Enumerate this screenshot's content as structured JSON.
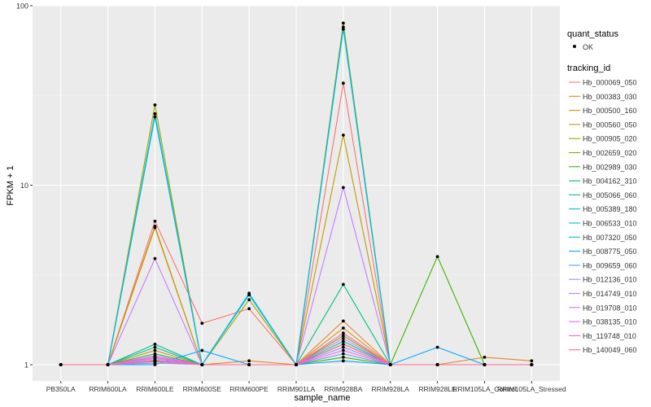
{
  "chart_data": {
    "type": "line",
    "title": "",
    "xlabel": "sample_name",
    "ylabel": "FPKM + 1",
    "y_scale": "log10",
    "ylim": [
      1,
      100
    ],
    "y_ticks": [
      1,
      10,
      100
    ],
    "y_tick_labels": [
      "1",
      "10",
      "100"
    ],
    "categories": [
      "PB350LA",
      "RRIM600LA",
      "RRIM600LE",
      "RRIM600SE",
      "RRIM600PE",
      "RRIM901LA",
      "RRIM928BA",
      "RRIM928LA",
      "RRIM928LE",
      "RRIM105LA_Control",
      "RRIM105LA_Stressed"
    ],
    "legend_shape": {
      "title": "quant_status",
      "entries": [
        "OK"
      ]
    },
    "legend_color": {
      "title": "tracking_id"
    },
    "series": [
      {
        "name": "Hb_000069_050",
        "color": "#F8766D",
        "values": [
          1,
          1,
          6.3,
          1.7,
          2.05,
          1,
          37,
          1,
          1,
          1,
          1
        ]
      },
      {
        "name": "Hb_000383_030",
        "color": "#EA8331",
        "values": [
          1,
          1,
          5.9,
          1,
          1.05,
          1,
          1.75,
          1,
          1,
          1.1,
          1.05
        ]
      },
      {
        "name": "Hb_000500_160",
        "color": "#D89000",
        "values": [
          1,
          1,
          1.2,
          1,
          1,
          1,
          1.6,
          1,
          1,
          1,
          1
        ]
      },
      {
        "name": "Hb_000560_050",
        "color": "#C09B00",
        "values": [
          1,
          1,
          5.8,
          1,
          1,
          1,
          19,
          1,
          1,
          1,
          1
        ]
      },
      {
        "name": "Hb_000905_020",
        "color": "#A3A500",
        "values": [
          1,
          1,
          28,
          1,
          2.3,
          1,
          80,
          1,
          1,
          1,
          1
        ]
      },
      {
        "name": "Hb_002659_020",
        "color": "#7CAE00",
        "values": [
          1,
          1,
          1.1,
          1,
          1,
          1,
          1.45,
          1,
          1,
          1,
          1
        ]
      },
      {
        "name": "Hb_002989_030",
        "color": "#39B600",
        "values": [
          1,
          1,
          1.05,
          1,
          1,
          1,
          1.1,
          1,
          4,
          1,
          1
        ]
      },
      {
        "name": "Hb_004162_310",
        "color": "#00BB4E",
        "values": [
          1,
          1,
          1.15,
          1,
          1,
          1,
          1.3,
          1,
          1,
          1,
          1
        ]
      },
      {
        "name": "Hb_005066_060",
        "color": "#00BF7D",
        "values": [
          1,
          1,
          1.3,
          1,
          1,
          1,
          2.8,
          1,
          1,
          1,
          1
        ]
      },
      {
        "name": "Hb_005389_180",
        "color": "#00C1A3",
        "values": [
          1,
          1,
          1.25,
          1,
          1,
          1,
          1.35,
          1,
          1,
          1,
          1
        ]
      },
      {
        "name": "Hb_006533_010",
        "color": "#00BFC4",
        "values": [
          1,
          1,
          25,
          1,
          2.45,
          1,
          76,
          1,
          1,
          1,
          1
        ]
      },
      {
        "name": "Hb_007320_050",
        "color": "#00B8E7",
        "values": [
          1,
          1,
          24,
          1,
          2.5,
          1,
          74,
          1,
          1,
          1,
          1
        ]
      },
      {
        "name": "Hb_008775_050",
        "color": "#00A9FF",
        "values": [
          1,
          1,
          1,
          1.2,
          1,
          1,
          1.05,
          1,
          1.25,
          1,
          1
        ]
      },
      {
        "name": "Hb_009659_060",
        "color": "#619CFF",
        "values": [
          1,
          1,
          1.02,
          1,
          1,
          1,
          1.15,
          1,
          1,
          1,
          1
        ]
      },
      {
        "name": "Hb_012136_010",
        "color": "#9F8CFF",
        "values": [
          1,
          1,
          1.08,
          1,
          1,
          1,
          1.25,
          1,
          1,
          1,
          1
        ]
      },
      {
        "name": "Hb_014749_010",
        "color": "#C77CFF",
        "values": [
          1,
          1,
          3.9,
          1,
          1,
          1,
          9.7,
          1,
          1,
          1,
          1
        ]
      },
      {
        "name": "Hb_019708_010",
        "color": "#E76BF3",
        "values": [
          1,
          1,
          1.12,
          1,
          1,
          1,
          1.4,
          1,
          1,
          1,
          1
        ]
      },
      {
        "name": "Hb_038135_010",
        "color": "#F564E3",
        "values": [
          1,
          1,
          1.06,
          1,
          1,
          1,
          1.2,
          1,
          1,
          1,
          1
        ]
      },
      {
        "name": "Hb_119748_010",
        "color": "#FF62BC",
        "values": [
          1,
          1,
          1.1,
          1,
          1,
          1,
          1.5,
          1,
          1,
          1,
          1
        ]
      },
      {
        "name": "Hb_140049_060",
        "color": "#FF6C90",
        "values": [
          1,
          1,
          1.04,
          1,
          1,
          1,
          1.3,
          1,
          1,
          1,
          1
        ]
      }
    ],
    "grid": true,
    "legend_position": "right"
  },
  "colors": {
    "panel_bg": "#EBEBEB",
    "grid_major": "#FFFFFF",
    "grid_minor": "#F5F5F5",
    "point": "#000000",
    "text": "#333333"
  }
}
